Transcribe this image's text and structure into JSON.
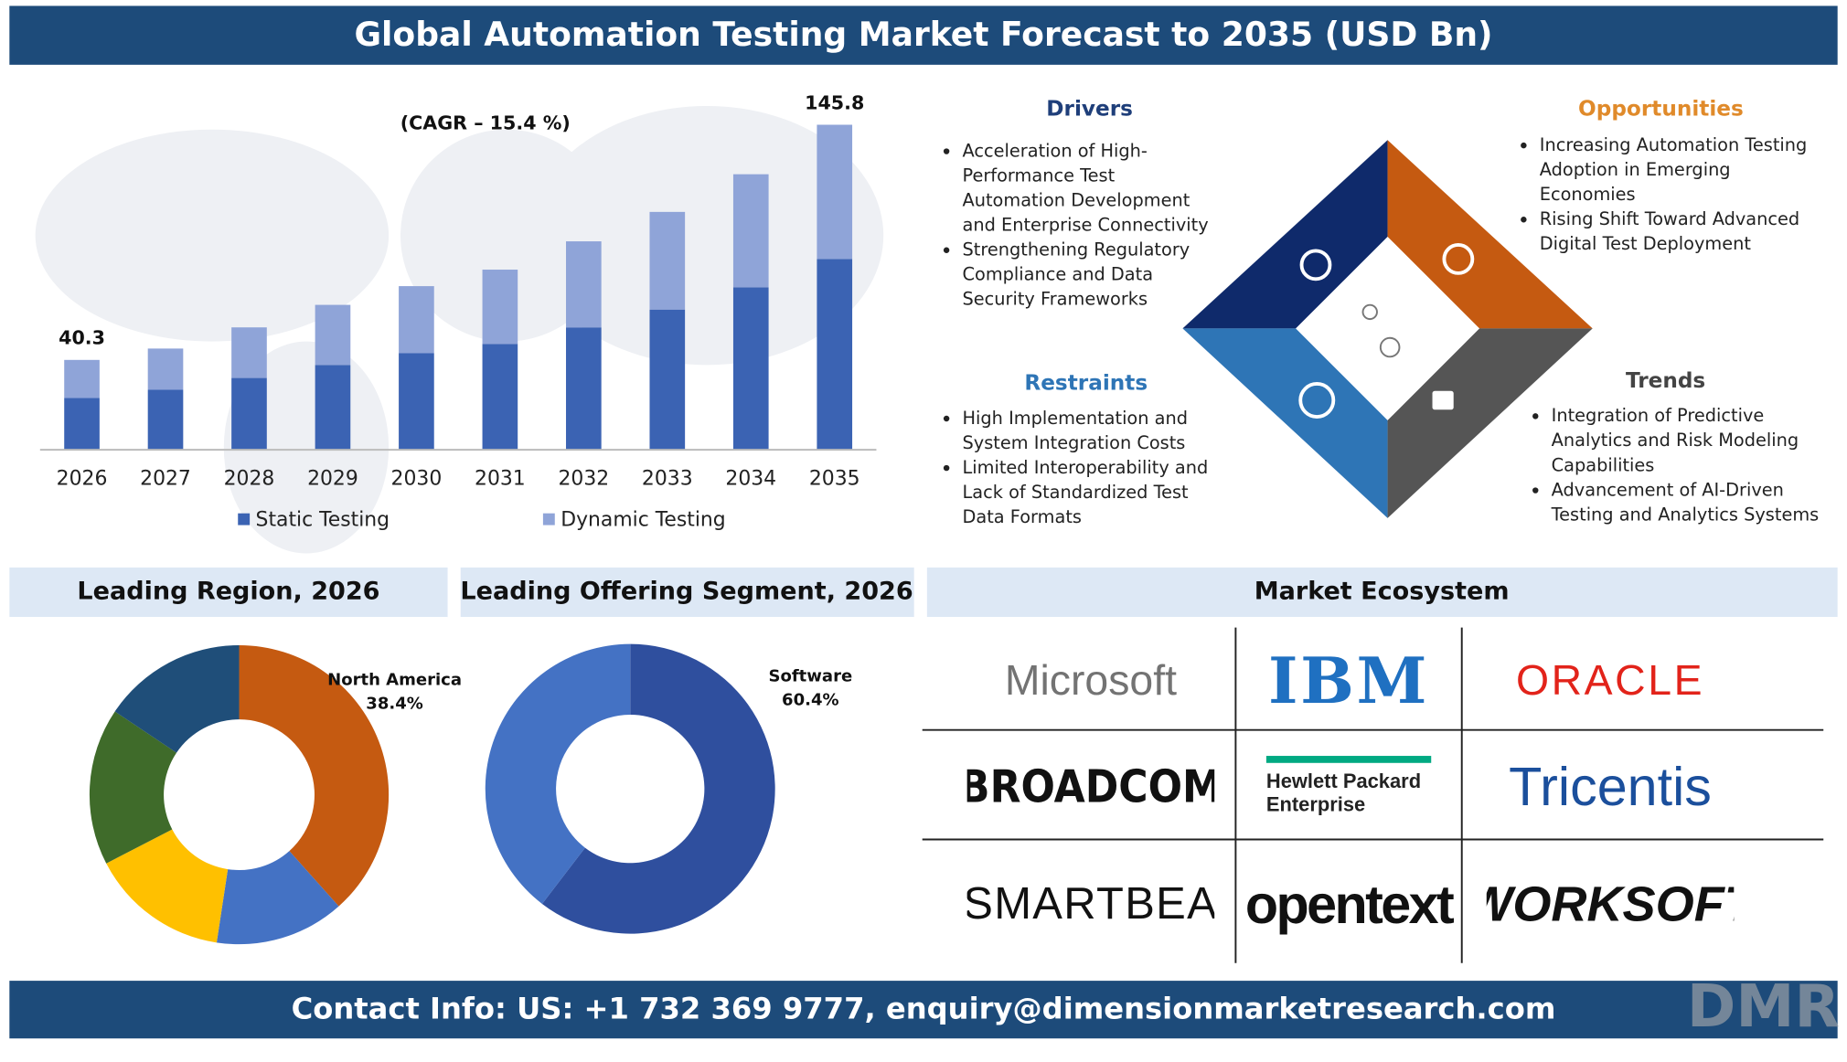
{
  "title": "Global Automation Testing Market Forecast to 2035 (USD Bn)",
  "chart_data": [
    {
      "type": "bar",
      "stacked": true,
      "subtitle": "(CAGR – 15.4 %)",
      "categories": [
        "2026",
        "2027",
        "2028",
        "2029",
        "2030",
        "2031",
        "2032",
        "2033",
        "2034",
        "2035"
      ],
      "series": [
        {
          "name": "Static Testing",
          "color": "#3b63b3",
          "values": [
            23.2,
            26.9,
            32.2,
            38.0,
            43.3,
            47.5,
            54.9,
            62.9,
            72.9,
            85.6
          ]
        },
        {
          "name": "Dynamic Testing",
          "color": "#8fa4d8",
          "values": [
            17.1,
            18.5,
            22.7,
            27.0,
            30.1,
            33.3,
            38.6,
            43.8,
            50.7,
            60.2
          ]
        }
      ],
      "annotations": [
        {
          "category": "2026",
          "value": 40.3
        },
        {
          "category": "2035",
          "value": 145.8
        }
      ],
      "ylim": [
        0,
        150
      ]
    },
    {
      "type": "donut",
      "title": "Leading Region, 2026",
      "categories": [
        "North America",
        null,
        null,
        null,
        null
      ],
      "values": [
        38.4,
        14,
        15,
        17,
        15.6
      ],
      "value_labels": [
        "38.4%",
        null,
        null,
        null,
        null
      ],
      "colors": [
        "#c55a11",
        "#4472c4",
        "#ffc000",
        "#3f6b2a",
        "#1f4e79"
      ]
    },
    {
      "type": "donut",
      "title": "Leading Offering Segment, 2026",
      "categories": [
        "Software",
        null
      ],
      "values": [
        60.4,
        39.6
      ],
      "value_labels": [
        "60.4%",
        null
      ],
      "colors": [
        "#2f4f9e",
        "#4472c4"
      ]
    }
  ],
  "quadrants": {
    "drivers": {
      "title": "Drivers",
      "items": [
        "Acceleration of High-Performance Test Automation Development and Enterprise Connectivity",
        "Strengthening Regulatory Compliance and Data Security Frameworks"
      ]
    },
    "opportunities": {
      "title": "Opportunities",
      "items": [
        "Increasing Automation Testing Adoption in Emerging Economies",
        "Rising Shift Toward Advanced Digital Test Deployment"
      ]
    },
    "restraints": {
      "title": "Restraints",
      "items": [
        "High Implementation and System Integration Costs",
        "Limited Interoperability and Lack of Standardized Test Data Formats"
      ]
    },
    "trends": {
      "title": "Trends",
      "items": [
        "Integration of Predictive Analytics and Risk Modeling Capabilities",
        "Advancement of AI-Driven Testing and Analytics Systems"
      ]
    }
  },
  "ecosystem": {
    "title": "Market Ecosystem",
    "companies": [
      "Microsoft",
      "IBM",
      "ORACLE",
      "BROADCOM",
      "Hewlett Packard Enterprise",
      "Tricentis",
      "SMARTBEAR",
      "opentext",
      "WORKSOFT"
    ]
  },
  "footer": "Contact Info: US: +1 732 369 9777, enquiry@dimensionmarketresearch.com",
  "logo": "DMR"
}
